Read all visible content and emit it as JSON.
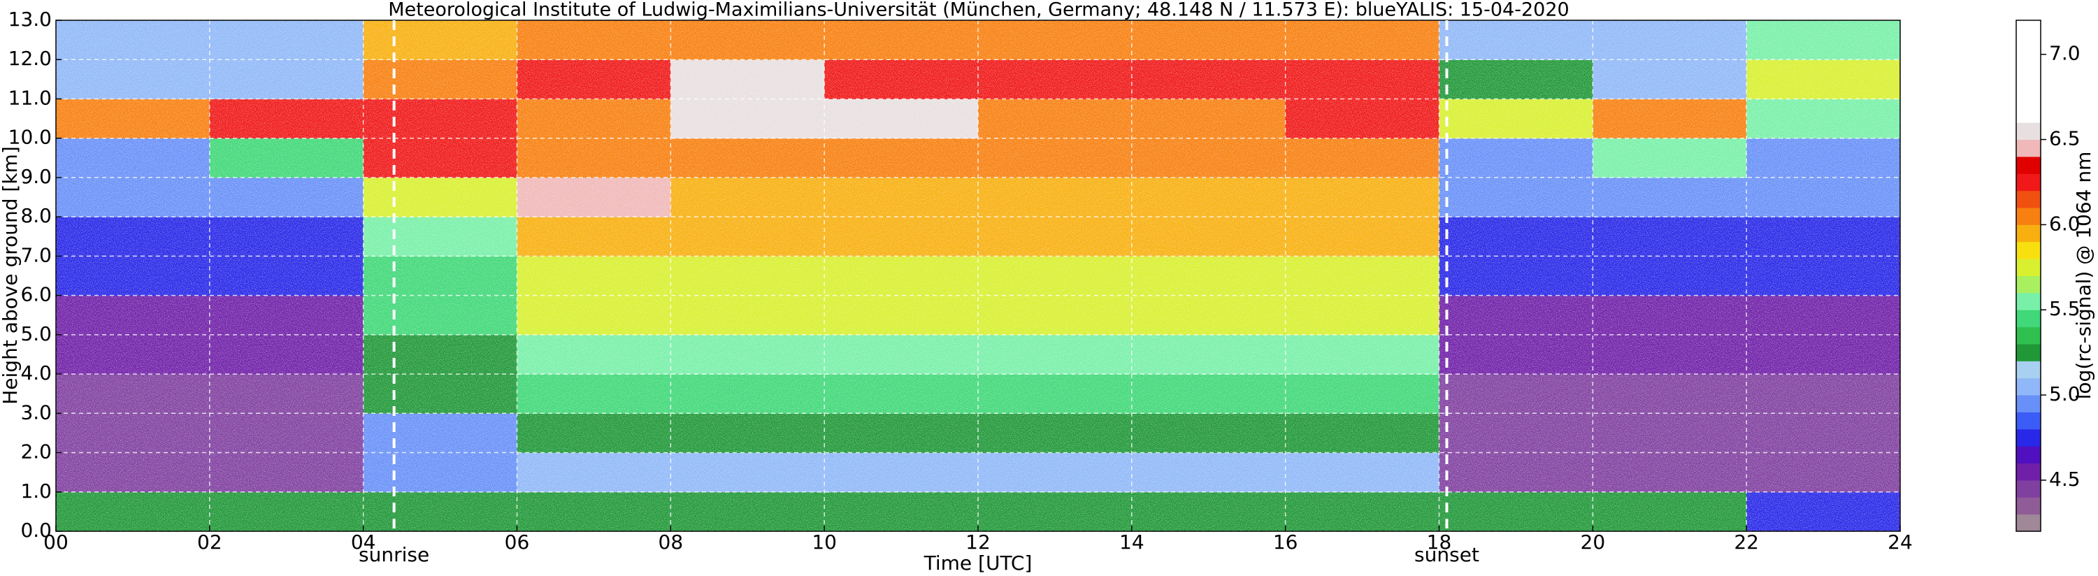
{
  "chart_data": {
    "type": "heatmap",
    "title": "Meteorological Institute of Ludwig-Maximilians-Universität (München, Germany; 48.148 N / 11.573 E):    blueYALIS: 15-04-2020",
    "x_label": "Time [UTC]",
    "y_label": "Height above ground [km]",
    "colorbar_label": "log(rc-signal) @ 1064 nm",
    "xlim": [
      0,
      24
    ],
    "ylim": [
      0,
      13
    ],
    "xticks": [
      {
        "value": 0,
        "label": "00"
      },
      {
        "value": 2,
        "label": "02"
      },
      {
        "value": 4,
        "label": "04"
      },
      {
        "value": 6,
        "label": "06"
      },
      {
        "value": 8,
        "label": "08"
      },
      {
        "value": 10,
        "label": "10"
      },
      {
        "value": 12,
        "label": "12"
      },
      {
        "value": 14,
        "label": "14"
      },
      {
        "value": 16,
        "label": "16"
      },
      {
        "value": 18,
        "label": "18"
      },
      {
        "value": 20,
        "label": "20"
      },
      {
        "value": 22,
        "label": "22"
      },
      {
        "value": 24,
        "label": "24"
      }
    ],
    "yticks": [
      {
        "value": 0,
        "label": "0.0"
      },
      {
        "value": 1,
        "label": "1.0"
      },
      {
        "value": 2,
        "label": "2.0"
      },
      {
        "value": 3,
        "label": "3.0"
      },
      {
        "value": 4,
        "label": "4.0"
      },
      {
        "value": 5,
        "label": "5.0"
      },
      {
        "value": 6,
        "label": "6.0"
      },
      {
        "value": 7,
        "label": "7.0"
      },
      {
        "value": 8,
        "label": "8.0"
      },
      {
        "value": 9,
        "label": "9.0"
      },
      {
        "value": 10,
        "label": "10.0"
      },
      {
        "value": 11,
        "label": "11.0"
      },
      {
        "value": 12,
        "label": "12.0"
      },
      {
        "value": 13,
        "label": "13.0"
      }
    ],
    "grid": true,
    "x_edges": [
      0,
      2,
      4,
      6,
      8,
      10,
      12,
      14,
      16,
      18,
      20,
      22,
      24
    ],
    "y_edges": [
      0,
      1,
      2,
      3,
      4,
      5,
      6,
      7,
      8,
      9,
      10,
      11,
      12,
      13
    ],
    "z": [
      [
        5.3,
        5.3,
        5.3,
        5.3,
        5.3,
        5.3,
        5.3,
        5.3,
        5.3,
        5.3,
        5.3,
        4.8
      ],
      [
        4.4,
        4.4,
        4.9,
        5.1,
        5.1,
        5.1,
        5.1,
        5.1,
        5.1,
        4.4,
        4.4,
        4.4
      ],
      [
        4.4,
        4.4,
        5.0,
        5.3,
        5.3,
        5.3,
        5.3,
        5.3,
        5.3,
        4.4,
        4.4,
        4.4
      ],
      [
        4.5,
        4.5,
        5.2,
        5.5,
        5.5,
        5.5,
        5.5,
        5.5,
        5.5,
        4.5,
        4.5,
        4.5
      ],
      [
        4.6,
        4.6,
        5.3,
        5.6,
        5.6,
        5.6,
        5.6,
        5.6,
        5.6,
        4.6,
        4.6,
        4.6
      ],
      [
        4.6,
        4.6,
        5.4,
        5.7,
        5.7,
        5.7,
        5.7,
        5.7,
        5.7,
        4.6,
        4.6,
        4.6
      ],
      [
        4.7,
        4.7,
        5.5,
        5.8,
        5.8,
        5.8,
        5.8,
        5.8,
        5.8,
        4.7,
        4.7,
        4.7
      ],
      [
        4.8,
        4.8,
        5.6,
        5.9,
        5.9,
        5.9,
        5.9,
        5.9,
        5.9,
        4.8,
        4.8,
        4.8
      ],
      [
        4.9,
        4.9,
        5.8,
        6.4,
        5.9,
        5.9,
        5.9,
        5.9,
        5.9,
        4.9,
        4.9,
        4.9
      ],
      [
        5.0,
        5.5,
        6.3,
        6.0,
        6.0,
        6.0,
        6.0,
        6.0,
        6.0,
        5.0,
        5.6,
        5.0
      ],
      [
        6.0,
        6.3,
        6.2,
        6.1,
        6.6,
        6.5,
        6.1,
        6.1,
        6.3,
        5.8,
        6.1,
        5.6
      ],
      [
        5.1,
        5.1,
        6.0,
        6.2,
        6.6,
        6.3,
        6.2,
        6.2,
        6.2,
        5.3,
        5.1,
        5.8
      ],
      [
        5.1,
        5.1,
        5.9,
        6.0,
        6.0,
        6.0,
        6.0,
        6.0,
        6.0,
        5.1,
        5.1,
        5.6
      ]
    ],
    "clim": [
      4.2,
      7.2
    ],
    "colormap": [
      "#a08898",
      "#905c98",
      "#8040a0",
      "#7020a8",
      "#5010c0",
      "#2828e8",
      "#3c5cf8",
      "#6890f8",
      "#90b8f8",
      "#a8d0f0",
      "#209838",
      "#30c050",
      "#40d878",
      "#78f0a8",
      "#a8f060",
      "#d8f030",
      "#f8e010",
      "#f8b010",
      "#f88010",
      "#f05010",
      "#f01818",
      "#e00000",
      "#f0b8b8",
      "#e8e0e0",
      "#ffffff",
      "#ffffff",
      "#ffffff",
      "#ffffff",
      "#ffffff",
      "#ffffff"
    ],
    "colorbar_ticks": [
      4.5,
      {
        "value": 5.0,
        "label": "5.0"
      },
      5.5,
      {
        "value": 6.0,
        "label": "6.0"
      },
      6.5,
      {
        "value": 7.0,
        "label": "7.0"
      }
    ],
    "annotations": [
      {
        "text": "sunrise",
        "x": 4.4
      },
      {
        "text": "sunset",
        "x": 18.1
      }
    ]
  }
}
